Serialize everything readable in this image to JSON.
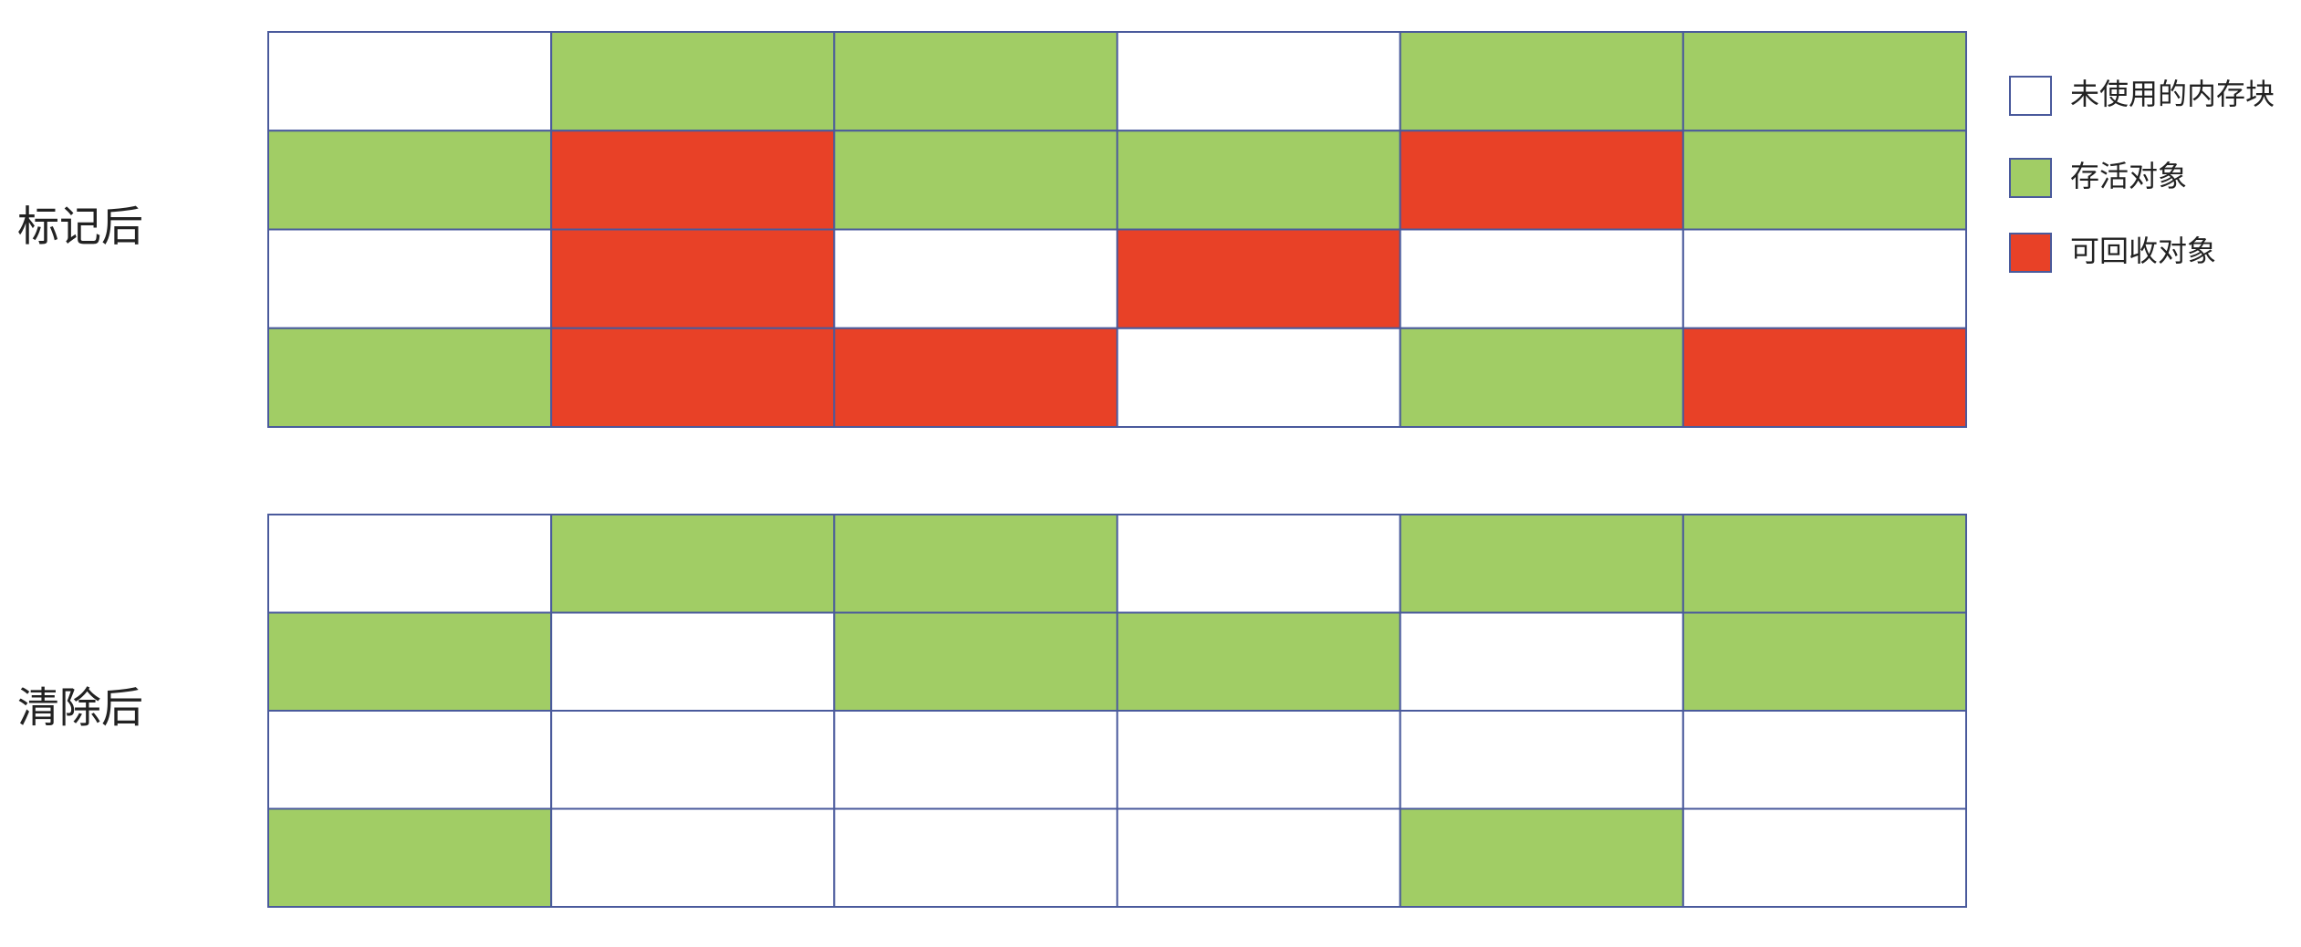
{
  "grids": [
    {
      "label": "标记后",
      "rows": [
        [
          "#ffffff",
          "#a1cd65",
          "#a1cd65",
          "#ffffff",
          "#a1cd65",
          "#a1cd65"
        ],
        [
          "#a1cd65",
          "#e84127",
          "#a1cd65",
          "#a1cd65",
          "#e84127",
          "#a1cd65"
        ],
        [
          "#ffffff",
          "#e84127",
          "#ffffff",
          "#e84127",
          "#ffffff",
          "#ffffff"
        ],
        [
          "#a1cd65",
          "#e84127",
          "#e84127",
          "#ffffff",
          "#a1cd65",
          "#e84127"
        ]
      ]
    },
    {
      "label": "清除后",
      "rows": [
        [
          "#ffffff",
          "#a1cd65",
          "#a1cd65",
          "#ffffff",
          "#a1cd65",
          "#a1cd65"
        ],
        [
          "#a1cd65",
          "#ffffff",
          "#a1cd65",
          "#a1cd65",
          "#ffffff",
          "#a1cd65"
        ],
        [
          "#ffffff",
          "#ffffff",
          "#ffffff",
          "#ffffff",
          "#ffffff",
          "#ffffff"
        ],
        [
          "#a1cd65",
          "#ffffff",
          "#ffffff",
          "#ffffff",
          "#a1cd65",
          "#ffffff"
        ]
      ]
    }
  ],
  "legend": [
    {
      "label": "未使用的内存块",
      "color": "#ffffff"
    },
    {
      "label": "存活对象",
      "color": "#a1cd65"
    },
    {
      "label": "可回收对象",
      "color": "#e84127"
    }
  ]
}
